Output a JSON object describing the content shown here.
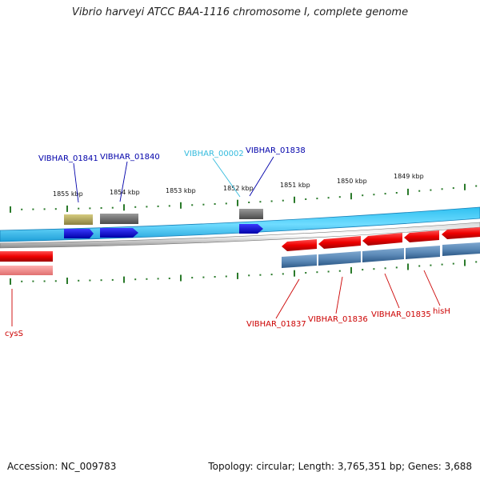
{
  "title": "Vibrio harveyi ATCC BAA-1116 chromosome I, complete genome",
  "footer": {
    "accession": "Accession: NC_009783",
    "summary": "Topology: circular; Length: 3,765,351 bp; Genes: 3,688"
  },
  "scale_labels": [
    "1855 kbp",
    "1854 kbp",
    "1853 kbp",
    "1852 kbp",
    "1851 kbp",
    "1850 kbp",
    "1849 kbp"
  ],
  "forward_labels": [
    {
      "text": "VIBHAR_01841",
      "color": "#0000aa"
    },
    {
      "text": "VIBHAR_01840",
      "color": "#0000aa"
    },
    {
      "text": "VIBHAR_00002",
      "color": "#33bbdd"
    },
    {
      "text": "VIBHAR_01838",
      "color": "#0000aa"
    }
  ],
  "reverse_labels": [
    {
      "text": "VIBHAR_01837",
      "color": "#cc0000"
    },
    {
      "text": "VIBHAR_01836",
      "color": "#cc0000"
    },
    {
      "text": "VIBHAR_01835",
      "color": "#cc0000"
    },
    {
      "text": "hisH",
      "color": "#cc0000"
    },
    {
      "text": "cysS",
      "color": "#cc0000"
    }
  ],
  "colors": {
    "backbone": "#1e9ad0",
    "forward_gene": "#0000ee",
    "reverse_gene": "#ee0000",
    "cds_bar": "#4a78a8",
    "tick": "#2a7a2a"
  }
}
